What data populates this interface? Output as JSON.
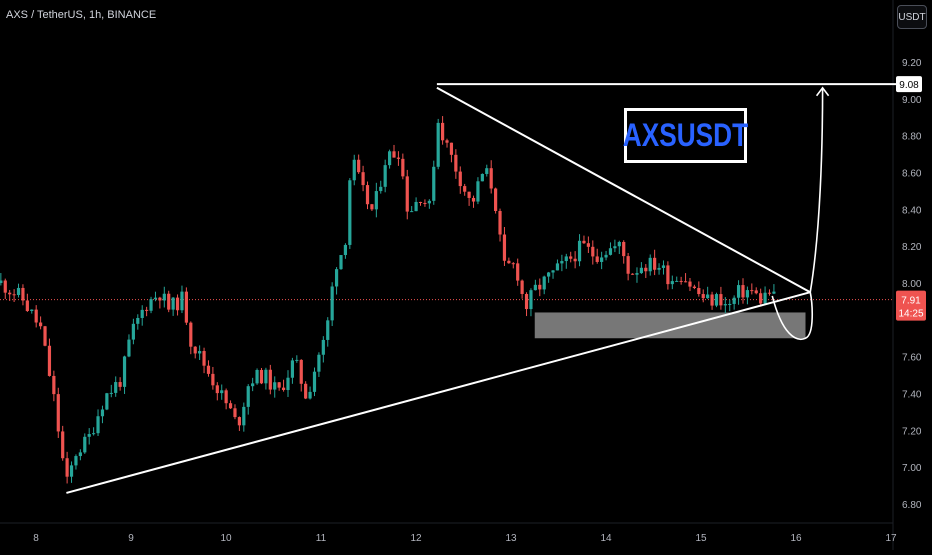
{
  "header": {
    "symbol": "AXS / TetherUS, 1h, BINANCE",
    "currency_button": "USDT"
  },
  "annotation": {
    "label": "AXSUSDT"
  },
  "colors": {
    "background": "#000000",
    "up": "#26a69a",
    "down": "#ef5350",
    "drawing": "#ffffff",
    "zone": "#8c8c8c",
    "price_line": "#ef5350",
    "annotation_text": "#2962ff"
  },
  "chart_data": {
    "type": "candlestick",
    "symbol": "AXS / TetherUS",
    "interval": "1h",
    "exchange": "BINANCE",
    "x_tick_labels": [
      "8",
      "9",
      "10",
      "11",
      "12",
      "13",
      "14",
      "15",
      "16",
      "17"
    ],
    "y_tick_labels": [
      "9.20",
      "9.00",
      "8.80",
      "8.60",
      "8.40",
      "8.20",
      "8.00",
      "7.60",
      "7.40",
      "7.20",
      "7.00",
      "6.80"
    ],
    "ylim": [
      6.75,
      9.27
    ],
    "xlim": [
      7.63,
      17.18
    ],
    "last_price": {
      "label": "7.91",
      "value": 7.91,
      "countdown": "14:25"
    },
    "target_price": {
      "label": "9.08",
      "value": 9.08
    },
    "grid": false,
    "candle_anchors": [
      [
        7.63,
        8.0
      ],
      [
        7.85,
        7.92
      ],
      [
        8.05,
        7.75
      ],
      [
        8.18,
        7.4
      ],
      [
        8.32,
        6.9
      ],
      [
        8.42,
        7.08
      ],
      [
        8.55,
        7.15
      ],
      [
        8.72,
        7.38
      ],
      [
        8.9,
        7.48
      ],
      [
        9.0,
        7.72
      ],
      [
        9.15,
        7.88
      ],
      [
        9.3,
        7.95
      ],
      [
        9.4,
        7.86
      ],
      [
        9.55,
        7.92
      ],
      [
        9.62,
        7.7
      ],
      [
        9.78,
        7.55
      ],
      [
        9.92,
        7.42
      ],
      [
        10.05,
        7.3
      ],
      [
        10.12,
        7.22
      ],
      [
        10.25,
        7.48
      ],
      [
        10.4,
        7.5
      ],
      [
        10.55,
        7.4
      ],
      [
        10.72,
        7.58
      ],
      [
        10.85,
        7.38
      ],
      [
        10.98,
        7.62
      ],
      [
        11.05,
        7.7
      ],
      [
        11.15,
        8.1
      ],
      [
        11.25,
        8.2
      ],
      [
        11.32,
        8.68
      ],
      [
        11.45,
        8.48
      ],
      [
        11.55,
        8.38
      ],
      [
        11.68,
        8.68
      ],
      [
        11.82,
        8.72
      ],
      [
        11.92,
        8.38
      ],
      [
        12.05,
        8.48
      ],
      [
        12.15,
        8.4
      ],
      [
        12.22,
        8.9
      ],
      [
        12.32,
        8.75
      ],
      [
        12.48,
        8.55
      ],
      [
        12.58,
        8.42
      ],
      [
        12.72,
        8.62
      ],
      [
        12.82,
        8.5
      ],
      [
        12.92,
        8.08
      ],
      [
        13.05,
        8.1
      ],
      [
        13.15,
        7.86
      ],
      [
        13.25,
        7.96
      ],
      [
        13.42,
        8.04
      ],
      [
        13.6,
        8.12
      ],
      [
        13.75,
        8.2
      ],
      [
        13.88,
        8.15
      ],
      [
        14.0,
        8.18
      ],
      [
        14.15,
        8.2
      ],
      [
        14.25,
        8.05
      ],
      [
        14.38,
        8.1
      ],
      [
        14.55,
        8.1
      ],
      [
        14.68,
        8.02
      ],
      [
        14.8,
        8.05
      ],
      [
        14.95,
        7.95
      ],
      [
        15.08,
        7.9
      ],
      [
        15.2,
        7.92
      ],
      [
        15.28,
        7.86
      ],
      [
        15.4,
        7.95
      ],
      [
        15.52,
        7.96
      ],
      [
        15.62,
        7.91
      ],
      [
        15.72,
        7.95
      ],
      [
        15.78,
        7.91
      ]
    ],
    "drawings": {
      "triangle_upper": [
        [
          12.22,
          9.06
        ],
        [
          16.15,
          7.95
        ]
      ],
      "triangle_lower": [
        [
          8.32,
          6.86
        ],
        [
          16.15,
          7.95
        ]
      ],
      "target_line": [
        [
          12.22,
          9.08
        ],
        [
          17.18,
          9.08
        ]
      ],
      "support_zone": {
        "x": [
          13.25,
          16.1
        ],
        "y": [
          7.7,
          7.84
        ]
      },
      "projection_curve": [
        [
          15.75,
          7.93
        ],
        [
          16.0,
          7.72
        ],
        [
          16.1,
          7.7
        ],
        [
          16.15,
          7.95
        ],
        [
          16.28,
          9.06
        ]
      ]
    }
  }
}
